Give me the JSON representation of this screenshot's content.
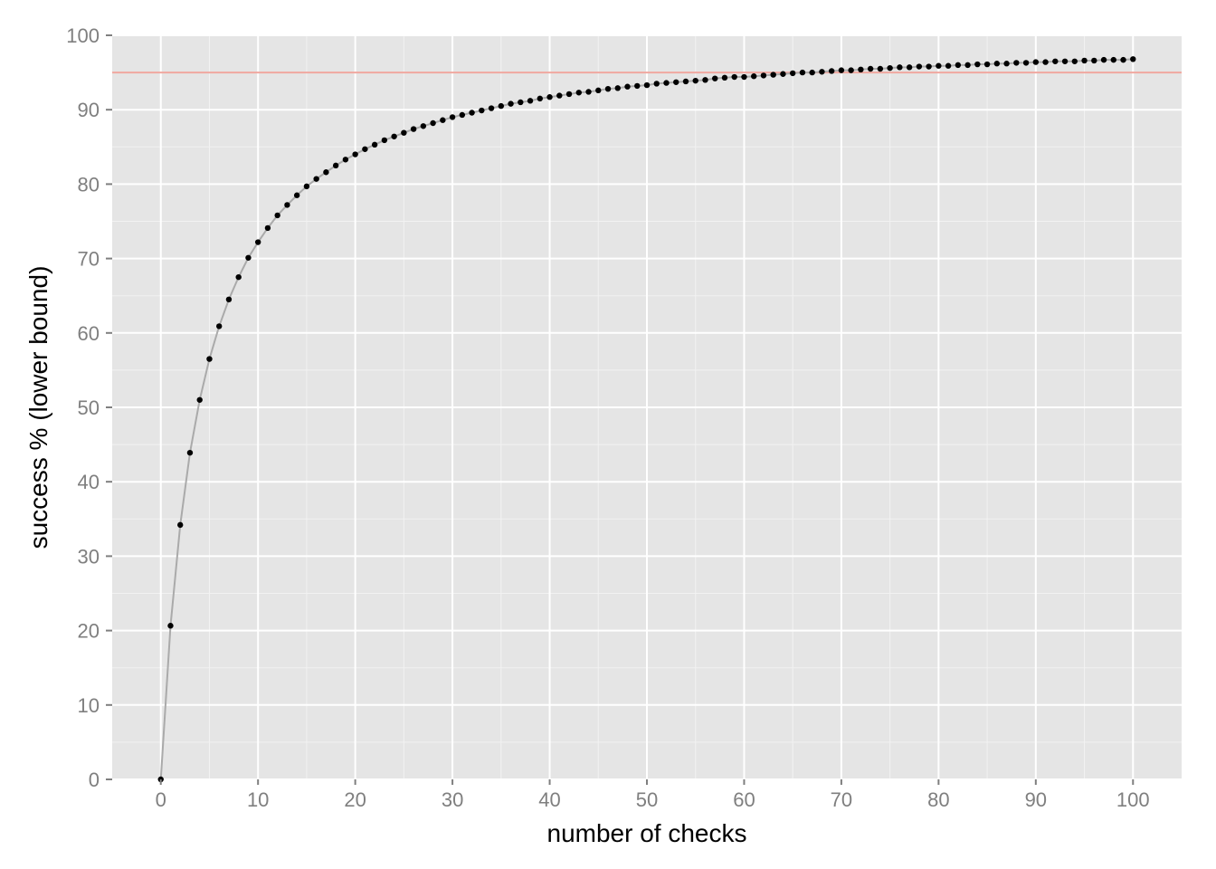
{
  "chart_data": {
    "type": "scatter",
    "title": "",
    "xlabel": "number of checks",
    "ylabel": "success % (lower bound)",
    "xlim": [
      -5,
      105
    ],
    "ylim": [
      0,
      100
    ],
    "x_ticks": [
      0,
      10,
      20,
      30,
      40,
      50,
      60,
      70,
      80,
      90,
      100
    ],
    "y_ticks": [
      0,
      10,
      20,
      30,
      40,
      50,
      60,
      70,
      80,
      90,
      100
    ],
    "grid": true,
    "legend": "none",
    "series": [
      {
        "x": [
          0,
          1,
          2,
          3,
          4,
          5,
          6,
          7,
          8,
          9,
          10,
          11,
          12,
          13,
          14,
          15,
          16,
          17,
          18,
          19,
          20,
          21,
          22,
          23,
          24,
          25,
          26,
          27,
          28,
          29,
          30,
          31,
          32,
          33,
          34,
          35,
          36,
          37,
          38,
          39,
          40,
          41,
          42,
          43,
          44,
          45,
          46,
          47,
          48,
          49,
          50,
          51,
          52,
          53,
          54,
          55,
          56,
          57,
          58,
          59,
          60,
          61,
          62,
          63,
          64,
          65,
          66,
          67,
          68,
          69,
          70,
          71,
          72,
          73,
          74,
          75,
          76,
          77,
          78,
          79,
          80,
          81,
          82,
          83,
          84,
          85,
          86,
          87,
          88,
          89,
          90,
          91,
          92,
          93,
          94,
          95,
          96,
          97,
          98,
          99,
          100
        ],
        "y": [
          0,
          20.65,
          34.2,
          43.9,
          51.0,
          56.5,
          60.9,
          64.5,
          67.5,
          70.1,
          72.2,
          74.1,
          75.8,
          77.2,
          78.5,
          79.7,
          80.7,
          81.6,
          82.5,
          83.3,
          84.0,
          84.7,
          85.3,
          85.9,
          86.4,
          86.9,
          87.4,
          87.8,
          88.2,
          88.6,
          89.0,
          89.3,
          89.6,
          89.9,
          90.2,
          90.5,
          90.8,
          91.0,
          91.2,
          91.5,
          91.7,
          91.9,
          92.1,
          92.3,
          92.4,
          92.6,
          92.8,
          92.9,
          93.1,
          93.2,
          93.3,
          93.5,
          93.6,
          93.7,
          93.8,
          93.9,
          94.0,
          94.2,
          94.3,
          94.4,
          94.4,
          94.5,
          94.6,
          94.7,
          94.8,
          94.9,
          95.0,
          95.0,
          95.1,
          95.2,
          95.3,
          95.3,
          95.4,
          95.5,
          95.5,
          95.6,
          95.7,
          95.7,
          95.8,
          95.8,
          95.9,
          95.9,
          96.0,
          96.0,
          96.1,
          96.1,
          96.2,
          96.2,
          96.3,
          96.3,
          96.4,
          96.4,
          96.5,
          96.5,
          96.5,
          96.6,
          96.6,
          96.7,
          96.7,
          96.7,
          96.8
        ]
      }
    ],
    "hline": {
      "y": 95
    },
    "colors": {
      "panel": "#e5e5e5",
      "grid": "#ffffff",
      "point": "#000000",
      "line": "#aaaaaa",
      "hline": "#f0a8a0",
      "tick_text": "#7f7f7f",
      "tick_mark": "#7f7f7f"
    }
  }
}
